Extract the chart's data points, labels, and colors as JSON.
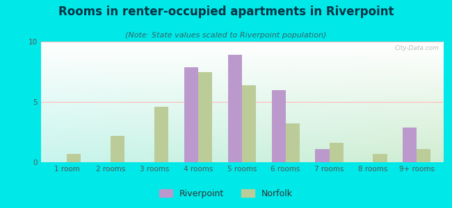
{
  "title": "Rooms in renter-occupied apartments in Riverpoint",
  "subtitle": "(Note: State values scaled to Riverpoint population)",
  "categories": [
    "1 room",
    "2 rooms",
    "3 rooms",
    "4 rooms",
    "5 rooms",
    "6 rooms",
    "7 rooms",
    "8 rooms",
    "9+ rooms"
  ],
  "riverpoint_values": [
    0,
    0,
    0,
    7.9,
    8.9,
    6.0,
    1.1,
    0,
    2.9
  ],
  "norfolk_values": [
    0.7,
    2.2,
    4.6,
    7.5,
    6.4,
    3.2,
    1.6,
    0.7,
    1.1
  ],
  "riverpoint_color": "#bb99cc",
  "norfolk_color": "#bbcc99",
  "background_outer": "#00e8e8",
  "ylim": [
    0,
    10
  ],
  "yticks": [
    0,
    5,
    10
  ],
  "bar_width": 0.32,
  "title_fontsize": 12,
  "subtitle_fontsize": 8,
  "tick_fontsize": 7.5,
  "legend_fontsize": 9,
  "axis_color": "#555555",
  "grid_color": "#ffbbbb",
  "watermark": "City-Data.com"
}
